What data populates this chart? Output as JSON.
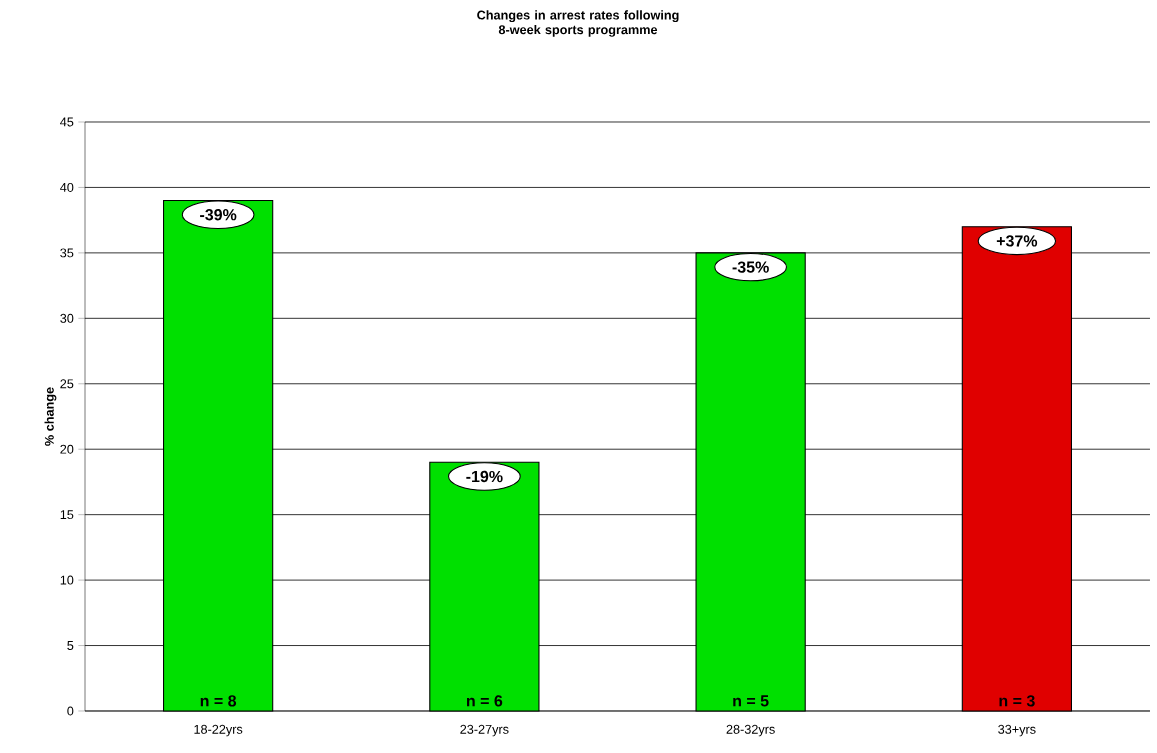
{
  "chart_data": {
    "type": "bar",
    "title": "Changes in arrest rates following 8-week sports programme",
    "ylabel": "% change",
    "categories": [
      "18-22yrs",
      "23-27yrs",
      "28-32yrs",
      "33+yrs"
    ],
    "values": [
      39,
      19,
      35,
      37
    ],
    "colors": [
      "#00e000",
      "#00e000",
      "#00e000",
      "#e00000"
    ],
    "annotations": [
      "-39%",
      "-19%",
      "-35%",
      "+37%",
      "n = 8",
      "n = 6",
      "n = 5",
      "n = 3"
    ],
    "ylim": [
      0,
      45
    ],
    "yticks": [
      0,
      5,
      10,
      15,
      20,
      25,
      30,
      35,
      40,
      45
    ],
    "grid": "y"
  }
}
